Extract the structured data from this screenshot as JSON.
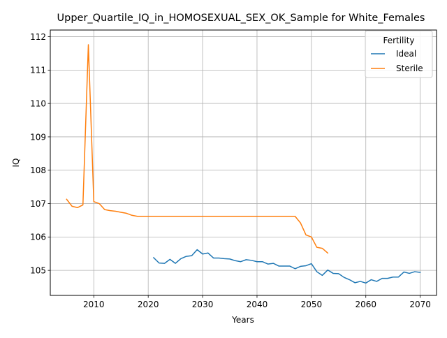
{
  "chart_data": {
    "type": "line",
    "title": "Upper_Quartile_IQ_in_HOMOSEXUAL_SEX_OK_Sample for White_Females",
    "xlabel": "Years",
    "ylabel": "IQ",
    "xlim": [
      2002,
      2073
    ],
    "ylim": [
      104.25,
      112.2
    ],
    "xticks": [
      2010,
      2020,
      2030,
      2040,
      2050,
      2060,
      2070
    ],
    "yticks": [
      105,
      106,
      107,
      108,
      109,
      110,
      111,
      112
    ],
    "grid": true,
    "legend": {
      "title": "Fertility",
      "placement": "upper right"
    },
    "series": [
      {
        "name": "Ideal",
        "color": "#1f77b4",
        "x": [
          2021,
          2022,
          2023,
          2024,
          2025,
          2026,
          2027,
          2028,
          2029,
          2030,
          2031,
          2032,
          2033,
          2034,
          2035,
          2036,
          2037,
          2038,
          2039,
          2040,
          2041,
          2042,
          2043,
          2044,
          2045,
          2046,
          2047,
          2048,
          2049,
          2050,
          2051,
          2052,
          2053,
          2054,
          2055,
          2056,
          2057,
          2058,
          2059,
          2060,
          2061,
          2062,
          2063,
          2064,
          2065,
          2066,
          2067,
          2068,
          2069,
          2070
        ],
        "y": [
          105.38,
          105.22,
          105.21,
          105.33,
          105.21,
          105.35,
          105.42,
          105.44,
          105.62,
          105.49,
          105.52,
          105.37,
          105.37,
          105.35,
          105.34,
          105.29,
          105.26,
          105.32,
          105.3,
          105.26,
          105.26,
          105.19,
          105.21,
          105.13,
          105.13,
          105.13,
          105.05,
          105.12,
          105.14,
          105.2,
          104.96,
          104.85,
          105.01,
          104.91,
          104.9,
          104.79,
          104.72,
          104.63,
          104.67,
          104.62,
          104.72,
          104.67,
          104.76,
          104.76,
          104.8,
          104.8,
          104.95,
          104.91,
          104.96,
          104.94
        ]
      },
      {
        "name": "Sterile",
        "color": "#ff7f0e",
        "x": [
          2005,
          2006,
          2007,
          2008,
          2009,
          2010,
          2011,
          2012,
          2013,
          2014,
          2015,
          2016,
          2017,
          2018,
          2019,
          2020,
          2021,
          2022,
          2023,
          2024,
          2025,
          2026,
          2027,
          2028,
          2029,
          2030,
          2031,
          2032,
          2033,
          2034,
          2035,
          2036,
          2037,
          2038,
          2039,
          2040,
          2041,
          2042,
          2043,
          2044,
          2045,
          2046,
          2047,
          2048,
          2049,
          2050,
          2051,
          2052,
          2053
        ],
        "y": [
          107.13,
          106.92,
          106.88,
          106.96,
          111.76,
          107.06,
          107.0,
          106.82,
          106.79,
          106.77,
          106.74,
          106.71,
          106.65,
          106.62,
          106.62,
          106.62,
          106.62,
          106.62,
          106.62,
          106.62,
          106.62,
          106.62,
          106.62,
          106.62,
          106.62,
          106.62,
          106.62,
          106.62,
          106.62,
          106.62,
          106.62,
          106.62,
          106.62,
          106.62,
          106.62,
          106.62,
          106.62,
          106.62,
          106.62,
          106.62,
          106.62,
          106.62,
          106.62,
          106.42,
          106.06,
          106.0,
          105.69,
          105.66,
          105.52
        ]
      }
    ]
  }
}
